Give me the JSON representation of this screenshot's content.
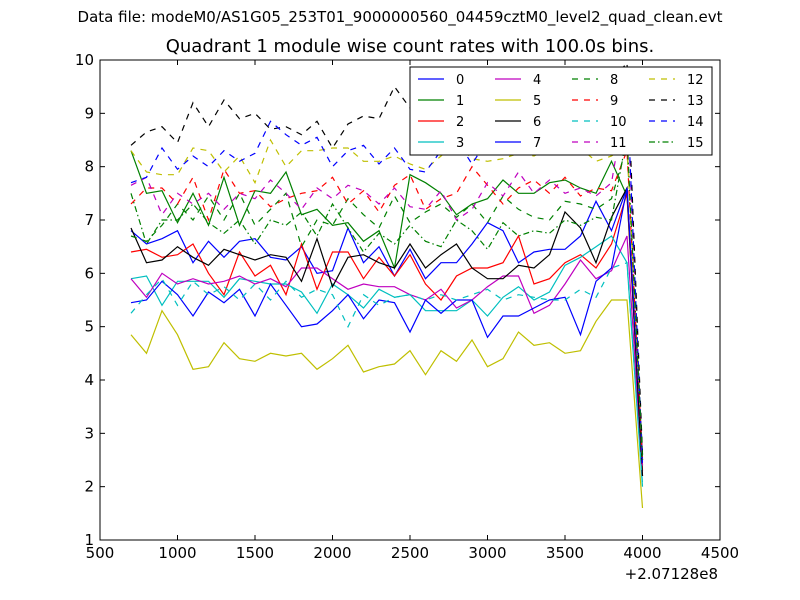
{
  "suptitle": "Data file: modeM0/AS1G05_253T01_9000000560_04459cztM0_level2_quad_clean.evt",
  "chart_data": {
    "type": "line",
    "title": "Quadrant 1 module wise count rates with 100.0s bins.",
    "xlabel": "",
    "ylabel": "",
    "x_offset_label": "+2.07128e8",
    "xlim": [
      500,
      4500
    ],
    "ylim": [
      1,
      10
    ],
    "xticks": [
      500,
      1000,
      1500,
      2000,
      2500,
      3000,
      3500,
      4000,
      4500
    ],
    "yticks": [
      1,
      2,
      3,
      4,
      5,
      6,
      7,
      8,
      9,
      10
    ],
    "grid": false,
    "legend_position": "top-right",
    "legend_columns": 4,
    "x": [
      700,
      800,
      900,
      1000,
      1100,
      1200,
      1300,
      1400,
      1500,
      1600,
      1700,
      1800,
      1900,
      2000,
      2100,
      2200,
      2300,
      2400,
      2500,
      2600,
      2700,
      2800,
      2900,
      3000,
      3100,
      3200,
      3300,
      3400,
      3500,
      3600,
      3700,
      3800,
      3900,
      4000
    ],
    "series": [
      {
        "name": "0",
        "color": "#0000ff",
        "dash": "solid",
        "values": [
          6.8,
          6.55,
          6.65,
          6.8,
          6.2,
          6.6,
          6.3,
          6.6,
          6.65,
          6.3,
          6.25,
          6.5,
          6.0,
          6.05,
          6.85,
          6.2,
          6.5,
          5.95,
          6.45,
          5.9,
          6.2,
          6.2,
          6.55,
          6.95,
          6.8,
          6.2,
          6.4,
          6.45,
          6.45,
          6.7,
          7.35,
          6.8,
          7.6,
          2.5
        ]
      },
      {
        "name": "1",
        "color": "#008000",
        "dash": "solid",
        "values": [
          8.3,
          7.5,
          7.55,
          6.95,
          7.5,
          6.9,
          7.8,
          6.9,
          7.55,
          7.5,
          7.9,
          7.1,
          7.2,
          6.9,
          6.95,
          6.6,
          6.8,
          6.1,
          7.85,
          7.7,
          7.5,
          7.1,
          7.3,
          7.4,
          7.75,
          7.5,
          7.5,
          7.7,
          7.75,
          7.6,
          7.5,
          8.1,
          7.45,
          2.4
        ]
      },
      {
        "name": "2",
        "color": "#ff0000",
        "dash": "solid",
        "values": [
          6.4,
          6.45,
          6.3,
          6.35,
          6.55,
          6.0,
          5.6,
          6.4,
          5.95,
          6.15,
          5.6,
          6.55,
          5.7,
          6.4,
          6.4,
          5.9,
          6.3,
          5.95,
          6.35,
          5.8,
          5.5,
          5.95,
          6.1,
          6.1,
          6.2,
          6.7,
          5.8,
          5.9,
          6.2,
          6.35,
          6.1,
          6.55,
          7.5,
          2.3
        ]
      },
      {
        "name": "3",
        "color": "#00bfbf",
        "dash": "solid",
        "values": [
          5.9,
          5.95,
          5.4,
          5.85,
          5.85,
          5.85,
          5.55,
          5.9,
          5.85,
          5.8,
          5.8,
          5.65,
          5.25,
          5.8,
          5.6,
          5.35,
          5.7,
          5.55,
          5.6,
          5.3,
          5.3,
          5.3,
          5.5,
          5.2,
          5.55,
          5.75,
          5.5,
          5.65,
          6.15,
          6.3,
          6.5,
          6.7,
          6.2,
          2.0
        ]
      },
      {
        "name": "4",
        "color": "#bf00bf",
        "dash": "solid",
        "values": [
          5.9,
          5.55,
          6.0,
          5.8,
          5.9,
          5.8,
          5.85,
          5.95,
          5.8,
          5.9,
          5.75,
          6.1,
          6.1,
          5.9,
          5.7,
          5.8,
          5.75,
          5.75,
          5.6,
          5.5,
          5.7,
          5.35,
          5.5,
          5.75,
          5.95,
          5.95,
          5.25,
          5.4,
          5.8,
          6.25,
          5.9,
          6.05,
          6.7,
          2.2
        ]
      },
      {
        "name": "5",
        "color": "#bfbf00",
        "dash": "solid",
        "values": [
          4.85,
          4.5,
          5.3,
          4.85,
          4.2,
          4.25,
          4.7,
          4.4,
          4.35,
          4.5,
          4.45,
          4.5,
          4.2,
          4.4,
          4.65,
          4.15,
          4.25,
          4.3,
          4.55,
          4.1,
          4.55,
          4.35,
          4.75,
          4.25,
          4.4,
          4.9,
          4.65,
          4.7,
          4.5,
          4.55,
          5.1,
          5.5,
          5.5,
          1.6
        ]
      },
      {
        "name": "6",
        "color": "#000000",
        "dash": "solid",
        "values": [
          6.85,
          6.2,
          6.25,
          6.5,
          6.3,
          6.15,
          6.45,
          6.35,
          6.25,
          6.35,
          6.3,
          5.85,
          6.65,
          5.75,
          6.3,
          6.35,
          6.2,
          6.1,
          6.55,
          6.1,
          6.35,
          6.55,
          6.1,
          5.9,
          5.9,
          6.15,
          6.1,
          6.35,
          7.15,
          6.85,
          6.2,
          7.05,
          7.6,
          2.2
        ]
      },
      {
        "name": "7",
        "color": "#0000ff",
        "dash": "solid",
        "values": [
          5.45,
          5.5,
          5.85,
          5.6,
          5.2,
          5.65,
          5.45,
          5.7,
          5.2,
          5.8,
          5.4,
          5.0,
          5.05,
          5.3,
          5.6,
          5.15,
          5.5,
          5.45,
          4.9,
          5.5,
          5.25,
          5.5,
          5.5,
          4.8,
          5.2,
          5.2,
          5.35,
          5.5,
          5.55,
          4.85,
          5.85,
          6.1,
          7.6,
          2.6
        ]
      },
      {
        "name": "8",
        "color": "#008000",
        "dash": "dashed",
        "values": [
          6.7,
          6.6,
          6.9,
          7.3,
          7.0,
          7.45,
          7.0,
          7.5,
          6.9,
          7.2,
          7.5,
          6.5,
          7.0,
          6.9,
          7.4,
          7.1,
          6.85,
          7.45,
          6.95,
          7.15,
          7.3,
          7.05,
          7.3,
          6.95,
          7.45,
          7.2,
          7.05,
          7.0,
          7.35,
          7.3,
          7.2,
          7.4,
          8.4,
          2.6
        ]
      },
      {
        "name": "9",
        "color": "#ff0000",
        "dash": "dashed",
        "values": [
          7.3,
          7.6,
          7.6,
          7.3,
          7.8,
          7.0,
          7.95,
          7.5,
          7.55,
          7.25,
          7.4,
          7.5,
          7.55,
          7.8,
          7.3,
          7.55,
          7.15,
          7.65,
          7.85,
          7.2,
          7.4,
          7.5,
          8.0,
          7.65,
          7.3,
          7.6,
          7.75,
          7.5,
          7.8,
          7.45,
          7.6,
          7.55,
          8.3,
          2.5
        ]
      },
      {
        "name": "10",
        "color": "#00bfbf",
        "dash": "dashed",
        "values": [
          5.25,
          5.6,
          5.9,
          5.4,
          5.85,
          5.6,
          5.75,
          5.5,
          5.8,
          5.5,
          5.85,
          5.55,
          5.7,
          5.6,
          5.0,
          5.6,
          5.4,
          5.55,
          5.6,
          5.5,
          5.6,
          5.5,
          5.6,
          5.7,
          5.5,
          5.6,
          5.55,
          5.5,
          5.5,
          5.7,
          5.55,
          6.1,
          6.2,
          2.05
        ]
      },
      {
        "name": "11",
        "color": "#bf00bf",
        "dash": "dashed",
        "values": [
          7.65,
          7.8,
          7.1,
          7.5,
          7.3,
          7.5,
          7.2,
          7.5,
          7.4,
          7.75,
          7.5,
          7.2,
          7.6,
          7.4,
          7.65,
          7.55,
          7.3,
          7.6,
          7.25,
          7.2,
          7.55,
          7.0,
          7.2,
          7.7,
          7.45,
          7.9,
          7.5,
          7.75,
          7.5,
          7.6,
          7.45,
          7.7,
          9.4,
          2.3
        ]
      },
      {
        "name": "12",
        "color": "#bfbf00",
        "dash": "dashed",
        "values": [
          8.3,
          7.9,
          7.85,
          7.85,
          8.35,
          8.3,
          7.9,
          8.2,
          7.7,
          8.5,
          8.0,
          8.3,
          8.3,
          8.35,
          8.35,
          8.1,
          8.1,
          8.2,
          8.05,
          7.95,
          8.2,
          8.45,
          8.15,
          8.1,
          8.15,
          8.25,
          8.2,
          8.35,
          8.4,
          8.35,
          8.1,
          8.2,
          8.4,
          2.5
        ]
      },
      {
        "name": "13",
        "color": "#000000",
        "dash": "dashed",
        "values": [
          8.4,
          8.65,
          8.75,
          8.45,
          9.2,
          8.75,
          9.25,
          8.9,
          9.0,
          8.7,
          8.75,
          8.6,
          8.85,
          8.35,
          8.8,
          8.95,
          8.9,
          9.5,
          9.1,
          8.5,
          9.0,
          9.2,
          8.8,
          8.9,
          8.95,
          9.0,
          9.05,
          9.2,
          9.3,
          9.25,
          9.4,
          9.6,
          9.95,
          2.6
        ]
      },
      {
        "name": "14",
        "color": "#0000ff",
        "dash": "dashed",
        "values": [
          7.7,
          7.8,
          8.35,
          7.95,
          8.2,
          8.0,
          8.3,
          8.1,
          8.25,
          8.85,
          8.6,
          8.4,
          8.55,
          8.0,
          8.3,
          8.4,
          8.05,
          8.35,
          7.95,
          7.9,
          8.3,
          8.5,
          8.05,
          8.5,
          8.4,
          8.35,
          8.4,
          8.45,
          8.3,
          8.4,
          8.5,
          8.6,
          9.5,
          2.4
        ]
      },
      {
        "name": "15",
        "color": "#008000",
        "dash": "dashdot",
        "values": [
          7.5,
          6.55,
          7.0,
          7.0,
          7.3,
          6.95,
          6.75,
          7.0,
          6.55,
          7.0,
          6.9,
          7.15,
          6.7,
          7.3,
          6.85,
          6.4,
          6.75,
          6.55,
          6.9,
          6.6,
          6.5,
          7.0,
          6.8,
          6.45,
          6.95,
          6.7,
          6.8,
          6.75,
          7.0,
          6.9,
          7.05,
          7.0,
          8.6,
          2.5
        ]
      }
    ]
  }
}
